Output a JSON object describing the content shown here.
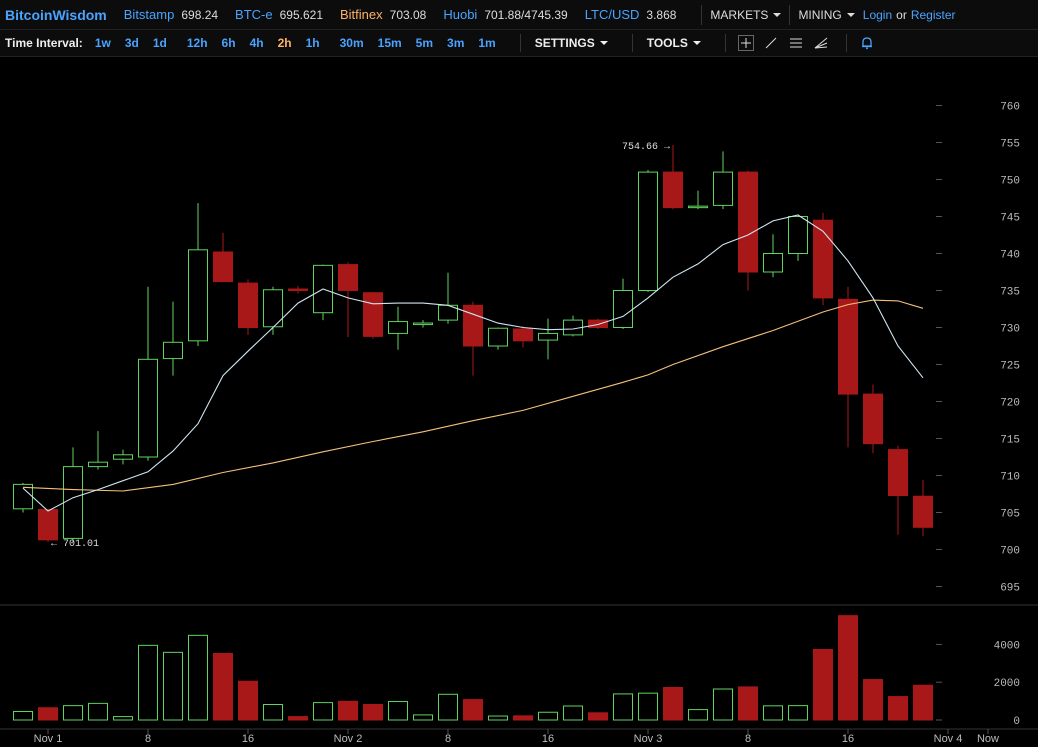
{
  "brand": "BitcoinWisdom",
  "tickers": [
    {
      "name": "Bitstamp",
      "value": "698.24",
      "highlight": false
    },
    {
      "name": "BTC-e",
      "value": "695.621",
      "highlight": false
    },
    {
      "name": "Bitfinex",
      "value": "703.08",
      "highlight": true
    },
    {
      "name": "Huobi",
      "value": "701.88/4745.39",
      "highlight": false
    },
    {
      "name": "LTC/USD",
      "value": "3.868",
      "highlight": false
    }
  ],
  "menus": {
    "markets": "MARKETS",
    "mining": "MINING"
  },
  "auth": {
    "login": "Login",
    "or": "or",
    "register": "Register"
  },
  "toolbar": {
    "interval_label": "Time Interval:",
    "intervals": [
      "1w",
      "3d",
      "1d",
      "12h",
      "6h",
      "4h",
      "2h",
      "1h",
      "30m",
      "15m",
      "5m",
      "3m",
      "1m"
    ],
    "active_interval": "2h",
    "settings": "SETTINGS",
    "tools": "TOOLS"
  },
  "colors": {
    "up": "#5fd45f",
    "down": "#a81818",
    "ma_short": "#cfe6f2",
    "ma_long": "#f5c07a",
    "axis_text": "#bbbbbb",
    "link": "#4aa3ff",
    "active": "#ffb266"
  },
  "chart_data": {
    "type": "candlestick",
    "price_axis": {
      "ylim": [
        690,
        765
      ],
      "ticks": [
        695,
        700,
        705,
        710,
        715,
        720,
        725,
        730,
        735,
        740,
        745,
        750,
        755,
        760
      ]
    },
    "volume_axis": {
      "ylim": [
        0,
        5500
      ],
      "ticks": [
        0,
        2000,
        4000
      ]
    },
    "x_ticks": [
      {
        "label": "Nov 1",
        "index": 1
      },
      {
        "label": "8",
        "index": 5
      },
      {
        "label": "16",
        "index": 9
      },
      {
        "label": "Nov 2",
        "index": 13
      },
      {
        "label": "8",
        "index": 17
      },
      {
        "label": "16",
        "index": 21
      },
      {
        "label": "Nov 3",
        "index": 25
      },
      {
        "label": "8",
        "index": 29
      },
      {
        "label": "16",
        "index": 33
      },
      {
        "label": "Nov 4",
        "index": 37
      },
      {
        "label": "Now",
        "index": 38.5
      }
    ],
    "annotations": [
      {
        "text": "754.66",
        "index": 26,
        "price": 754.66,
        "side": "left"
      },
      {
        "text": "701.01",
        "index": 1,
        "price": 701.01,
        "side": "right"
      }
    ],
    "candles": [
      {
        "o": 705.5,
        "h": 709.0,
        "l": 705.0,
        "c": 708.8
      },
      {
        "o": 705.4,
        "h": 705.5,
        "l": 701.01,
        "c": 701.3
      },
      {
        "o": 701.5,
        "h": 713.8,
        "l": 701.0,
        "c": 711.2
      },
      {
        "o": 711.2,
        "h": 716.0,
        "l": 710.8,
        "c": 711.8
      },
      {
        "o": 712.2,
        "h": 713.5,
        "l": 711.5,
        "c": 712.8
      },
      {
        "o": 712.5,
        "h": 735.5,
        "l": 712.0,
        "c": 725.7
      },
      {
        "o": 725.8,
        "h": 733.5,
        "l": 723.5,
        "c": 728.0
      },
      {
        "o": 728.2,
        "h": 746.8,
        "l": 727.5,
        "c": 740.5
      },
      {
        "o": 740.2,
        "h": 742.8,
        "l": 736.2,
        "c": 736.2
      },
      {
        "o": 736.0,
        "h": 736.5,
        "l": 729.0,
        "c": 730.0
      },
      {
        "o": 730.1,
        "h": 735.5,
        "l": 729.0,
        "c": 735.1
      },
      {
        "o": 735.2,
        "h": 735.6,
        "l": 734.6,
        "c": 735.0
      },
      {
        "o": 732.0,
        "h": 738.5,
        "l": 731.0,
        "c": 738.4
      },
      {
        "o": 738.5,
        "h": 738.8,
        "l": 728.7,
        "c": 735.0
      },
      {
        "o": 734.7,
        "h": 734.8,
        "l": 728.5,
        "c": 728.8
      },
      {
        "o": 729.2,
        "h": 732.8,
        "l": 727.0,
        "c": 730.8
      },
      {
        "o": 730.5,
        "h": 731.0,
        "l": 730.0,
        "c": 730.6
      },
      {
        "o": 731.0,
        "h": 737.4,
        "l": 730.5,
        "c": 733.0
      },
      {
        "o": 733.0,
        "h": 733.5,
        "l": 723.5,
        "c": 727.5
      },
      {
        "o": 727.5,
        "h": 730.0,
        "l": 727.0,
        "c": 729.9
      },
      {
        "o": 729.8,
        "h": 730.2,
        "l": 727.3,
        "c": 728.2
      },
      {
        "o": 728.3,
        "h": 731.2,
        "l": 725.7,
        "c": 729.2
      },
      {
        "o": 729.0,
        "h": 731.6,
        "l": 728.8,
        "c": 731.0
      },
      {
        "o": 731.0,
        "h": 731.2,
        "l": 729.8,
        "c": 730.0
      },
      {
        "o": 730.0,
        "h": 736.6,
        "l": 729.8,
        "c": 735.0
      },
      {
        "o": 735.0,
        "h": 751.3,
        "l": 734.8,
        "c": 751.0
      },
      {
        "o": 751.0,
        "h": 754.66,
        "l": 746.0,
        "c": 746.2
      },
      {
        "o": 746.3,
        "h": 748.5,
        "l": 746.0,
        "c": 746.4
      },
      {
        "o": 746.5,
        "h": 753.8,
        "l": 746.0,
        "c": 751.0
      },
      {
        "o": 751.0,
        "h": 751.2,
        "l": 735.0,
        "c": 737.5
      },
      {
        "o": 737.5,
        "h": 742.6,
        "l": 736.8,
        "c": 740.0
      },
      {
        "o": 740.0,
        "h": 745.0,
        "l": 739.0,
        "c": 745.0
      },
      {
        "o": 744.5,
        "h": 745.5,
        "l": 733.0,
        "c": 734.0
      },
      {
        "o": 733.8,
        "h": 735.5,
        "l": 713.8,
        "c": 721.0
      },
      {
        "o": 721.0,
        "h": 722.3,
        "l": 713.0,
        "c": 714.3
      },
      {
        "o": 713.5,
        "h": 714.0,
        "l": 702.0,
        "c": 707.3
      },
      {
        "o": 707.2,
        "h": 709.4,
        "l": 701.8,
        "c": 703.0
      }
    ],
    "volumes": [
      450,
      650,
      760,
      880,
      180,
      3950,
      3580,
      4480,
      3520,
      2050,
      820,
      180,
      920,
      990,
      820,
      980,
      270,
      1360,
      1080,
      210,
      220,
      410,
      740,
      380,
      1380,
      1420,
      1720,
      550,
      1640,
      1750,
      750,
      760,
      3730,
      5520,
      2140,
      1240,
      1840
    ],
    "ma_short": [
      [
        0,
        708.3
      ],
      [
        1,
        705.2
      ],
      [
        2,
        707.0
      ],
      [
        3,
        708.1
      ],
      [
        4,
        709.3
      ],
      [
        5,
        710.5
      ],
      [
        6,
        713.3
      ],
      [
        7,
        717.0
      ],
      [
        8,
        723.5
      ],
      [
        9,
        726.8
      ],
      [
        10,
        730.0
      ],
      [
        11,
        733.3
      ],
      [
        12,
        735.2
      ],
      [
        13,
        734.0
      ],
      [
        14,
        733.2
      ],
      [
        15,
        733.3
      ],
      [
        16,
        733.3
      ],
      [
        17,
        733.0
      ],
      [
        18,
        731.8
      ],
      [
        19,
        730.6
      ],
      [
        20,
        730.0
      ],
      [
        21,
        729.7
      ],
      [
        22,
        729.8
      ],
      [
        23,
        730.4
      ],
      [
        24,
        731.5
      ],
      [
        25,
        734.0
      ],
      [
        26,
        736.8
      ],
      [
        27,
        738.6
      ],
      [
        28,
        741.2
      ],
      [
        29,
        742.5
      ],
      [
        30,
        744.4
      ],
      [
        31,
        745.2
      ],
      [
        32,
        743.0
      ],
      [
        33,
        739.0
      ],
      [
        34,
        734.0
      ],
      [
        35,
        727.5
      ],
      [
        36,
        723.2
      ]
    ],
    "ma_long": [
      [
        0,
        708.4
      ],
      [
        2,
        708.1
      ],
      [
        4,
        707.9
      ],
      [
        6,
        708.8
      ],
      [
        8,
        710.4
      ],
      [
        10,
        711.7
      ],
      [
        12,
        713.2
      ],
      [
        14,
        714.6
      ],
      [
        16,
        715.9
      ],
      [
        18,
        717.4
      ],
      [
        20,
        718.8
      ],
      [
        22,
        720.7
      ],
      [
        24,
        722.6
      ],
      [
        25,
        723.6
      ],
      [
        26,
        725.0
      ],
      [
        28,
        727.4
      ],
      [
        30,
        729.6
      ],
      [
        32,
        732.1
      ],
      [
        33,
        733.1
      ],
      [
        34,
        733.7
      ],
      [
        35,
        733.6
      ],
      [
        36,
        732.6
      ]
    ]
  }
}
